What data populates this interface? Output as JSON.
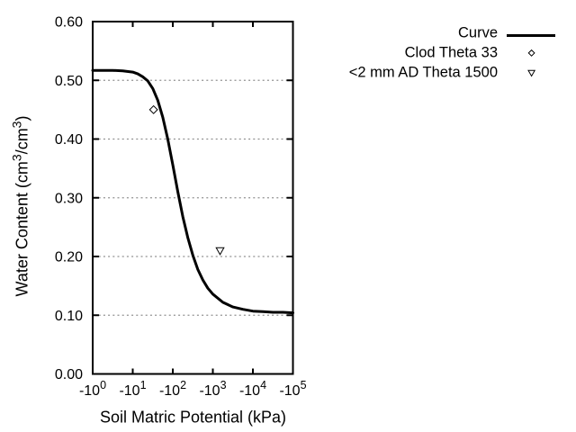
{
  "window": {
    "background": "#ffffff"
  },
  "chart_data": {
    "type": "line",
    "title": "",
    "xlabel": "Soil Matric Potential (kPa)",
    "ylabel": "Water Content (cm3/cm3)",
    "ylabel_parts": {
      "p0": "Water Content (cm",
      "sup1": "3",
      "p1": "/cm",
      "sup2": "3",
      "p2": ")"
    },
    "x_axis": {
      "scale": "negative log10, kPa",
      "range_decades": [
        0,
        5
      ],
      "tick_decades": [
        0,
        1,
        2,
        3,
        4,
        5
      ],
      "tick_labels": [
        {
          "base": "-10",
          "exp": "0"
        },
        {
          "base": "-10",
          "exp": "1"
        },
        {
          "base": "-10",
          "exp": "2"
        },
        {
          "base": "-10",
          "exp": "3"
        },
        {
          "base": "-10",
          "exp": "4"
        },
        {
          "base": "-10",
          "exp": "5"
        }
      ]
    },
    "y_axis": {
      "range": [
        0.0,
        0.6
      ],
      "tick_values": [
        0.0,
        0.1,
        0.2,
        0.3,
        0.4,
        0.5,
        0.6
      ],
      "tick_labels": [
        "0.00",
        "0.10",
        "0.20",
        "0.30",
        "0.40",
        "0.50",
        "0.60"
      ],
      "gridline_values": [
        0.1,
        0.2,
        0.3,
        0.4,
        0.5
      ],
      "grid_style": "dotted"
    },
    "series": [
      {
        "name": "Curve",
        "kind": "line",
        "x_log10_abs_kPa": [
          0,
          0.25,
          0.5,
          0.75,
          1,
          1.125,
          1.25,
          1.375,
          1.5,
          1.625,
          1.75,
          1.875,
          2,
          2.125,
          2.25,
          2.375,
          2.5,
          2.625,
          2.75,
          2.875,
          3,
          3.25,
          3.5,
          3.75,
          4,
          4.25,
          4.5,
          4.75,
          5
        ],
        "theta": [
          0.517,
          0.517,
          0.517,
          0.516,
          0.514,
          0.511,
          0.506,
          0.499,
          0.486,
          0.466,
          0.437,
          0.4,
          0.356,
          0.31,
          0.268,
          0.232,
          0.202,
          0.178,
          0.16,
          0.146,
          0.136,
          0.122,
          0.114,
          0.11,
          0.107,
          0.106,
          0.105,
          0.105,
          0.104
        ]
      },
      {
        "name": "Clod Theta 33",
        "kind": "point",
        "marker": "diamond-open",
        "x_kPa": -33,
        "x_log10_abs_kPa": 1.52,
        "theta": 0.45
      },
      {
        "name": "<2 mm AD Theta 1500",
        "kind": "point",
        "marker": "triangle-down-open",
        "x_kPa": -1500,
        "x_log10_abs_kPa": 3.18,
        "theta": 0.21
      }
    ],
    "legend": {
      "position": "top-right outside plot",
      "entries": [
        "Curve",
        "Clod Theta 33",
        "<2 mm AD Theta 1500"
      ]
    },
    "colors": {
      "line": "#000000",
      "text": "#000000",
      "grid": "#909090",
      "background": "#ffffff"
    }
  }
}
